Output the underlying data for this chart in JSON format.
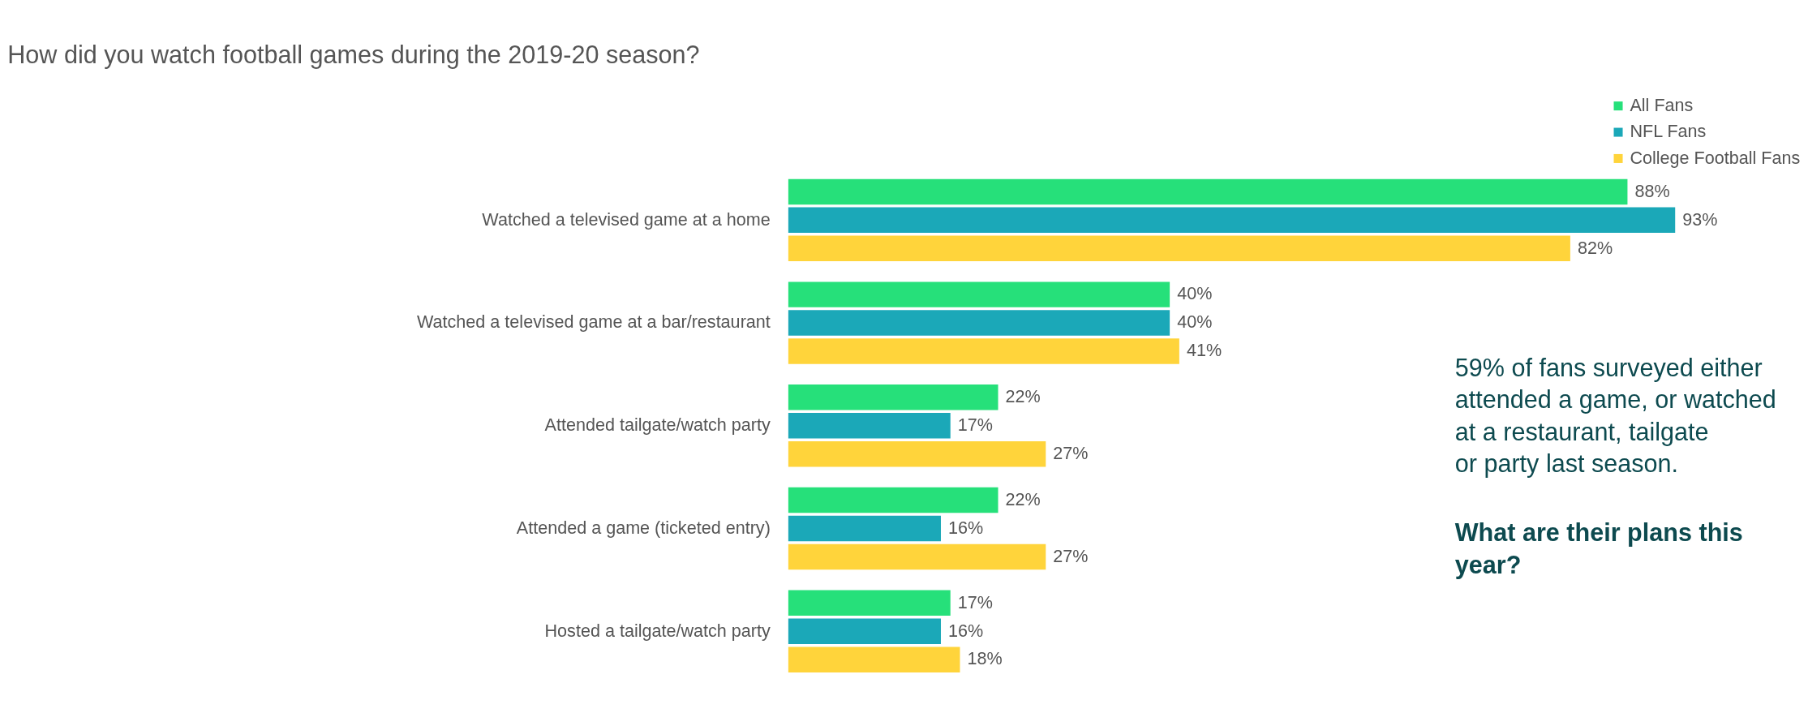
{
  "chart_data": {
    "type": "bar",
    "orientation": "horizontal",
    "title": "How did you watch football games during the 2019-20 season?",
    "categories": [
      "Watched a televised game at a home",
      "Watched a televised game at a bar/restaurant",
      "Attended tailgate/watch party",
      "Attended a game (ticketed entry)",
      "Hosted a tailgate/watch party"
    ],
    "series": [
      {
        "name": "All Fans",
        "color": "#26e07a",
        "values": [
          88,
          40,
          22,
          22,
          17
        ],
        "value_labels": [
          "88%",
          "40%",
          "22%",
          "22%",
          "17%"
        ]
      },
      {
        "name": "NFL Fans",
        "color": "#1ba8b8",
        "values": [
          93,
          40,
          17,
          16,
          16
        ],
        "value_labels": [
          "93%",
          "40%",
          "17%",
          "16%",
          "16%"
        ]
      },
      {
        "name": "College Football Fans",
        "color": "#ffd43b",
        "values": [
          82,
          41,
          27,
          27,
          18
        ],
        "value_labels": [
          "82%",
          "41%",
          "27%",
          "27%",
          "18%"
        ]
      }
    ],
    "legend": "top right",
    "grid": false,
    "annotations": [
      "59% of fans surveyed either attended a game, or watched at a restaurant, tailgate or party last season.",
      "What are their plans this year?"
    ]
  }
}
